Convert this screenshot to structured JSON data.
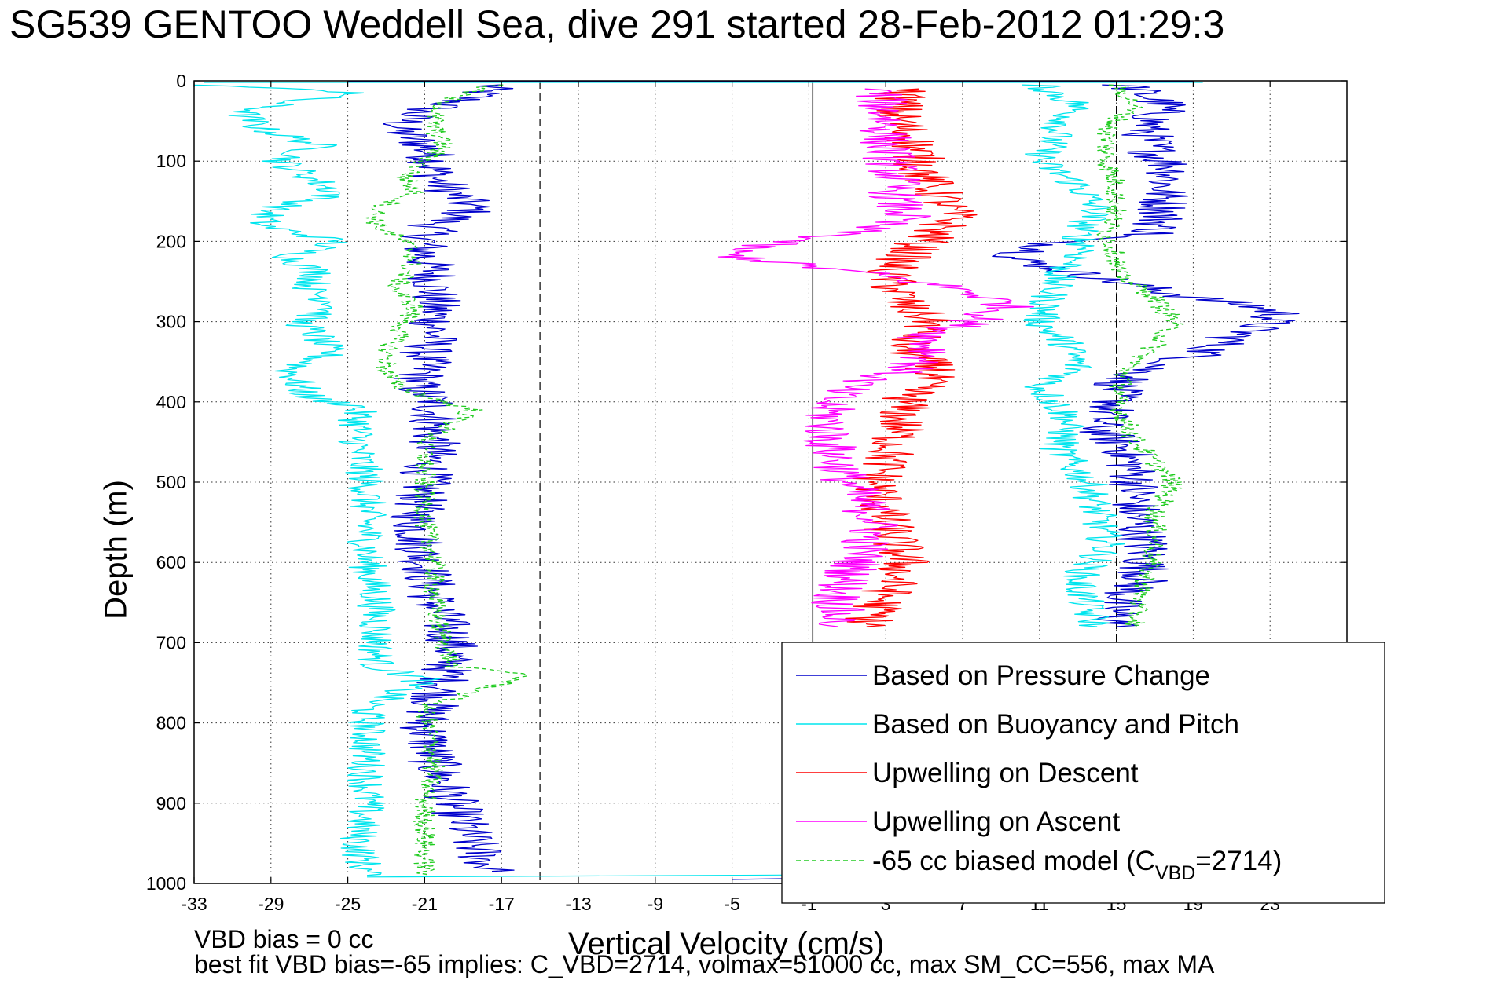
{
  "chart_data": {
    "type": "line",
    "title": "SG539 GENTOO Weddell Sea, dive 291 started 28-Feb-2012 01:29:3",
    "xlabel": "Vertical Velocity (cm/s)",
    "ylabel": "Depth (m)",
    "xlim": [
      -33,
      27
    ],
    "ylim": [
      0,
      1000
    ],
    "y_reversed": true,
    "grid": true,
    "legend_position": "lower-right",
    "x_ticks": [
      -33,
      -29,
      -25,
      -21,
      -17,
      -13,
      -9,
      -5,
      -1,
      3,
      7,
      11,
      15,
      19,
      23
    ],
    "y_ticks": [
      0,
      100,
      200,
      300,
      400,
      500,
      600,
      700,
      800,
      900,
      1000
    ],
    "reference_lines": {
      "solid_x": [
        -0.8
      ],
      "dashed_x": [
        -15,
        15
      ]
    },
    "series": [
      {
        "name": "Based on Pressure Change",
        "color": "#0000cc",
        "style": "solid",
        "segments": [
          {
            "depth": [
              5,
              20,
              40,
              60,
              80,
              100,
              120,
              140,
              160,
              180,
              200,
              220,
              240,
              260,
              280,
              300,
              320,
              340,
              360,
              380,
              400,
              450,
              500,
              550,
              600,
              650,
              700,
              750,
              800,
              850,
              900,
              950,
              985
            ],
            "velocity": [
              -17.5,
              -18.5,
              -21.5,
              -22.5,
              -21,
              -20.5,
              -20.5,
              -19.5,
              -18.5,
              -20.5,
              -21,
              -21,
              -20.5,
              -20.5,
              -20.5,
              -20.5,
              -20.5,
              -21,
              -21,
              -21.5,
              -20.5,
              -20.5,
              -21,
              -21.5,
              -21,
              -20.5,
              -19.5,
              -20,
              -21,
              -20.5,
              -19.5,
              -18.5,
              -17.5
            ]
          },
          {
            "depth": [
              5,
              30,
              60,
              90,
              110,
              130,
              160,
              190,
              200,
              210,
              220,
              240,
              255,
              270,
              280,
              290,
              300,
              310,
              320,
              340,
              360,
              380,
              400,
              430,
              460,
              500,
              540,
              580,
              620,
              650,
              680
            ],
            "velocity": [
              15.5,
              17.5,
              16.5,
              17,
              18,
              17.5,
              17.5,
              17,
              12,
              11,
              9.5,
              13,
              16,
              19,
              22,
              23.5,
              23,
              22,
              21,
              19.5,
              16.5,
              15,
              15,
              14,
              15.5,
              16,
              16,
              16.5,
              16.5,
              15,
              15
            ]
          }
        ]
      },
      {
        "name": "Based on Buoyancy and Pitch",
        "color": "#00e5ee",
        "style": "solid",
        "segments": [
          {
            "depth": [
              5,
              15,
              25,
              40,
              60,
              80,
              100,
              120,
              140,
              160,
              180,
              200,
              220,
              240,
              260,
              280,
              300,
              320,
              340,
              360,
              380,
              395,
              405,
              420,
              460,
              500,
              550,
              600,
              650,
              700,
              730,
              745,
              780,
              850,
              900,
              950,
              990
            ],
            "velocity": [
              -32.5,
              -24,
              -28,
              -30.5,
              -29.5,
              -26.5,
              -28.5,
              -27,
              -25.5,
              -29,
              -29.5,
              -25.5,
              -28,
              -26.5,
              -27,
              -25.5,
              -27.5,
              -26.5,
              -26,
              -28,
              -27.5,
              -27,
              -24.5,
              -24.5,
              -24.5,
              -24,
              -24,
              -24,
              -23.5,
              -23.5,
              -23.5,
              -21,
              -24,
              -24,
              -24,
              -24.5,
              -24
            ]
          },
          {
            "depth": [
              5,
              30,
              60,
              100,
              130,
              160,
              190,
              210,
              240,
              270,
              300,
              330,
              360,
              380,
              420,
              460,
              500,
              540,
              580,
              620,
              660,
              680
            ],
            "velocity": [
              11,
              13,
              12,
              11,
              13,
              14,
              13,
              13.5,
              12,
              11.5,
              11,
              12.5,
              13,
              11,
              12.5,
              12,
              13.5,
              14,
              14.5,
              13,
              13.5,
              14
            ]
          }
        ]
      },
      {
        "name": "Upwelling on Descent",
        "color": "#ff0000",
        "style": "solid",
        "segments": [
          {
            "depth": [
              10,
              40,
              80,
              120,
              150,
              170,
              200,
              240,
              280,
              300,
              330,
              360,
              400,
              450,
              500,
              550,
              600,
              640,
              680
            ],
            "velocity": [
              4,
              3.5,
              4.5,
              5,
              6,
              6.5,
              5,
              3,
              4,
              5.5,
              4,
              5.5,
              4,
              3.5,
              2.5,
              3,
              4,
              3,
              2
            ]
          }
        ]
      },
      {
        "name": "Upwelling on Ascent",
        "color": "#ff00ff",
        "style": "solid",
        "segments": [
          {
            "depth": [
              10,
              40,
              80,
              120,
              150,
              170,
              190,
              205,
              215,
              225,
              240,
              260,
              280,
              300,
              320,
              340,
              360,
              380,
              400,
              450,
              500,
              550,
              600,
              640,
              680
            ],
            "velocity": [
              2.5,
              3,
              3,
              3.5,
              3.5,
              4,
              1,
              -3.5,
              -5.5,
              -3,
              2,
              7,
              9.5,
              7.5,
              5,
              5.5,
              4,
              1,
              0,
              0,
              1,
              2.5,
              1.5,
              0.5,
              0.5
            ]
          }
        ]
      },
      {
        "name": "-65 cc biased model (C_VBD=2714)",
        "color": "#22cc22",
        "style": "dashed",
        "segments": [
          {
            "depth": [
              5,
              20,
              40,
              60,
              80,
              100,
              120,
              140,
              160,
              180,
              200,
              220,
              240,
              260,
              280,
              300,
              320,
              340,
              360,
              380,
              400,
              410,
              450,
              500,
              550,
              600,
              650,
              700,
              730,
              740,
              780,
              850,
              900,
              950,
              990
            ],
            "velocity": [
              -17.5,
              -19.5,
              -20.5,
              -20.5,
              -20,
              -21,
              -22,
              -21.5,
              -23.5,
              -23.5,
              -22,
              -21.5,
              -22,
              -22.5,
              -21.5,
              -22,
              -22.5,
              -23,
              -23,
              -22.5,
              -20,
              -18.5,
              -21,
              -21,
              -21,
              -20.5,
              -20.5,
              -20,
              -19.5,
              -15.5,
              -21,
              -20.5,
              -21,
              -21,
              -21
            ]
          },
          {
            "depth": [
              5,
              30,
              60,
              100,
              130,
              160,
              190,
              220,
              240,
              270,
              300,
              330,
              360,
              400,
              450,
              500,
              540,
              580,
              620,
              660,
              680
            ],
            "velocity": [
              15,
              16,
              14.5,
              14.5,
              15,
              15,
              14.5,
              15,
              15,
              17,
              18,
              17,
              15.5,
              15,
              16,
              18,
              17,
              17,
              16.5,
              16,
              16
            ]
          }
        ]
      }
    ],
    "legend": [
      {
        "label": "Based on Pressure Change",
        "color": "#0000cc",
        "dashed": false
      },
      {
        "label": "Based on Buoyancy and Pitch",
        "color": "#00e5ee",
        "dashed": false
      },
      {
        "label": "Upwelling on Descent",
        "color": "#ff0000",
        "dashed": false
      },
      {
        "label": "Upwelling on Ascent",
        "color": "#ff00ff",
        "dashed": false
      },
      {
        "label": "-65 cc biased model (C",
        "sub": "VBD",
        "suffix": "=2714)",
        "color": "#22cc22",
        "dashed": true
      }
    ]
  },
  "footnotes": {
    "line1": "VBD bias = 0 cc",
    "line2": "best fit VBD bias=-65 implies: C_VBD=2714, volmax=51000 cc, max SM_CC=556, max MA"
  }
}
